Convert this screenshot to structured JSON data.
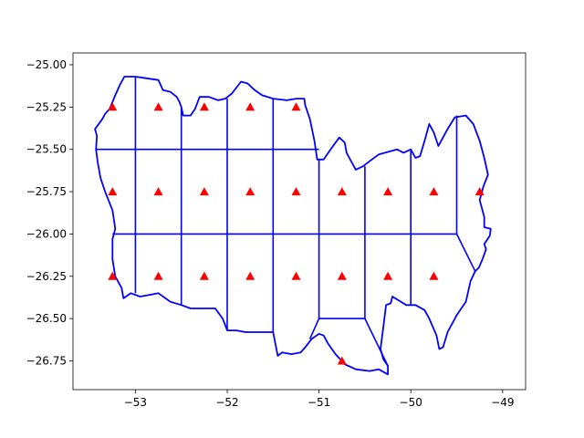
{
  "chart_data": {
    "type": "scatter",
    "title": "",
    "xlabel": "",
    "ylabel": "",
    "xlim": [
      -53.68,
      -48.75
    ],
    "ylim": [
      -26.92,
      -24.93
    ],
    "xticks": [
      -53,
      -52,
      -51,
      -50,
      -49
    ],
    "xtick_labels": [
      "−53",
      "−52",
      "−51",
      "−50",
      "−49"
    ],
    "yticks": [
      -25.0,
      -25.25,
      -25.5,
      -25.75,
      -26.0,
      -26.25,
      -26.5,
      -26.75
    ],
    "ytick_labels": [
      "−25.00",
      "−25.25",
      "−25.50",
      "−25.75",
      "−26.00",
      "−26.25",
      "−26.50",
      "−26.75"
    ],
    "grid": false,
    "legend": "none",
    "colors": {
      "boundary": "#0000ff",
      "points": "#ff0000",
      "axes": "#000000",
      "background": "#ffffff"
    },
    "points_marker": "triangle-up",
    "points": [
      {
        "x": -53.25,
        "y": -25.25
      },
      {
        "x": -52.75,
        "y": -25.25
      },
      {
        "x": -52.25,
        "y": -25.25
      },
      {
        "x": -51.75,
        "y": -25.25
      },
      {
        "x": -51.25,
        "y": -25.25
      },
      {
        "x": -53.25,
        "y": -25.75
      },
      {
        "x": -52.75,
        "y": -25.75
      },
      {
        "x": -52.25,
        "y": -25.75
      },
      {
        "x": -51.75,
        "y": -25.75
      },
      {
        "x": -51.25,
        "y": -25.75
      },
      {
        "x": -50.75,
        "y": -25.75
      },
      {
        "x": -50.25,
        "y": -25.75
      },
      {
        "x": -49.75,
        "y": -25.75
      },
      {
        "x": -49.25,
        "y": -25.75
      },
      {
        "x": -53.25,
        "y": -26.25
      },
      {
        "x": -52.75,
        "y": -26.25
      },
      {
        "x": -52.25,
        "y": -26.25
      },
      {
        "x": -51.75,
        "y": -26.25
      },
      {
        "x": -51.25,
        "y": -26.25
      },
      {
        "x": -50.75,
        "y": -26.25
      },
      {
        "x": -50.25,
        "y": -26.25
      },
      {
        "x": -49.75,
        "y": -26.25
      },
      {
        "x": -50.75,
        "y": -26.75
      }
    ],
    "outline": [
      [
        -53.43,
        -25.5
      ],
      [
        -53.42,
        -25.42
      ],
      [
        -53.44,
        -25.38
      ],
      [
        -53.4,
        -25.35
      ],
      [
        -53.36,
        -25.32
      ],
      [
        -53.33,
        -25.29
      ],
      [
        -53.28,
        -25.26
      ],
      [
        -53.25,
        -25.22
      ],
      [
        -53.22,
        -25.18
      ],
      [
        -53.17,
        -25.12
      ],
      [
        -53.12,
        -25.07
      ],
      [
        -53.0,
        -25.07
      ],
      [
        -52.88,
        -25.08
      ],
      [
        -52.75,
        -25.09
      ],
      [
        -52.7,
        -25.15
      ],
      [
        -52.62,
        -25.16
      ],
      [
        -52.55,
        -25.19
      ],
      [
        -52.52,
        -25.22
      ],
      [
        -52.5,
        -25.25
      ],
      [
        -52.48,
        -25.3
      ],
      [
        -52.4,
        -25.3
      ],
      [
        -52.35,
        -25.26
      ],
      [
        -52.3,
        -25.19
      ],
      [
        -52.2,
        -25.19
      ],
      [
        -52.1,
        -25.21
      ],
      [
        -52.02,
        -25.2
      ],
      [
        -51.95,
        -25.17
      ],
      [
        -51.85,
        -25.1
      ],
      [
        -51.78,
        -25.11
      ],
      [
        -51.7,
        -25.15
      ],
      [
        -51.62,
        -25.18
      ],
      [
        -51.5,
        -25.2
      ],
      [
        -51.35,
        -25.21
      ],
      [
        -51.25,
        -25.2
      ],
      [
        -51.16,
        -25.2
      ],
      [
        -51.15,
        -25.24
      ],
      [
        -51.1,
        -25.32
      ],
      [
        -51.05,
        -25.45
      ],
      [
        -51.02,
        -25.56
      ],
      [
        -50.95,
        -25.56
      ],
      [
        -50.86,
        -25.49
      ],
      [
        -50.78,
        -25.43
      ],
      [
        -50.72,
        -25.46
      ],
      [
        -50.7,
        -25.52
      ],
      [
        -50.65,
        -25.57
      ],
      [
        -50.6,
        -25.62
      ],
      [
        -50.52,
        -25.6
      ],
      [
        -50.45,
        -25.57
      ],
      [
        -50.35,
        -25.53
      ],
      [
        -50.15,
        -25.5
      ],
      [
        -50.08,
        -25.52
      ],
      [
        -50.0,
        -25.5
      ],
      [
        -49.95,
        -25.55
      ],
      [
        -49.9,
        -25.54
      ],
      [
        -49.85,
        -25.45
      ],
      [
        -49.8,
        -25.35
      ],
      [
        -49.75,
        -25.4
      ],
      [
        -49.7,
        -25.48
      ],
      [
        -49.6,
        -25.38
      ],
      [
        -49.52,
        -25.31
      ],
      [
        -49.4,
        -25.3
      ],
      [
        -49.32,
        -25.35
      ],
      [
        -49.25,
        -25.45
      ],
      [
        -49.2,
        -25.55
      ],
      [
        -49.16,
        -25.65
      ],
      [
        -49.21,
        -25.72
      ],
      [
        -49.25,
        -25.8
      ],
      [
        -49.2,
        -25.9
      ],
      [
        -49.2,
        -25.96
      ],
      [
        -49.13,
        -25.97
      ],
      [
        -49.14,
        -26.01
      ],
      [
        -49.2,
        -26.06
      ],
      [
        -49.18,
        -26.09
      ],
      [
        -49.22,
        -26.15
      ],
      [
        -49.26,
        -26.2
      ],
      [
        -49.3,
        -26.22
      ],
      [
        -49.35,
        -26.28
      ],
      [
        -49.4,
        -26.4
      ],
      [
        -49.5,
        -26.48
      ],
      [
        -49.6,
        -26.58
      ],
      [
        -49.65,
        -26.67
      ],
      [
        -49.69,
        -26.68
      ],
      [
        -49.72,
        -26.6
      ],
      [
        -49.8,
        -26.5
      ],
      [
        -49.85,
        -26.45
      ],
      [
        -49.95,
        -26.42
      ],
      [
        -50.05,
        -26.42
      ],
      [
        -50.2,
        -26.37
      ],
      [
        -50.22,
        -26.41
      ],
      [
        -50.27,
        -26.42
      ],
      [
        -50.3,
        -26.55
      ],
      [
        -50.33,
        -26.68
      ],
      [
        -50.3,
        -26.74
      ],
      [
        -50.25,
        -26.78
      ],
      [
        -50.25,
        -26.83
      ],
      [
        -50.35,
        -26.8
      ],
      [
        -50.45,
        -26.81
      ],
      [
        -50.6,
        -26.8
      ],
      [
        -50.72,
        -26.77
      ],
      [
        -50.82,
        -26.71
      ],
      [
        -50.9,
        -26.65
      ],
      [
        -50.95,
        -26.6
      ],
      [
        -51.0,
        -26.59
      ],
      [
        -51.08,
        -26.62
      ],
      [
        -51.15,
        -26.67
      ],
      [
        -51.2,
        -26.7
      ],
      [
        -51.3,
        -26.71
      ],
      [
        -51.4,
        -26.7
      ],
      [
        -51.45,
        -26.72
      ],
      [
        -51.5,
        -26.58
      ],
      [
        -51.7,
        -26.58
      ],
      [
        -51.8,
        -26.58
      ],
      [
        -51.9,
        -26.57
      ],
      [
        -52.0,
        -26.57
      ],
      [
        -52.05,
        -26.5
      ],
      [
        -52.13,
        -26.44
      ],
      [
        -52.22,
        -26.44
      ],
      [
        -52.4,
        -26.44
      ],
      [
        -52.5,
        -26.42
      ],
      [
        -52.62,
        -26.4
      ],
      [
        -52.75,
        -26.35
      ],
      [
        -52.85,
        -26.36
      ],
      [
        -52.95,
        -26.37
      ],
      [
        -53.05,
        -26.35
      ],
      [
        -53.13,
        -26.38
      ],
      [
        -53.15,
        -26.32
      ],
      [
        -53.22,
        -26.25
      ],
      [
        -53.25,
        -26.15
      ],
      [
        -53.25,
        -26.03
      ],
      [
        -53.22,
        -25.97
      ],
      [
        -53.25,
        -25.86
      ],
      [
        -53.33,
        -25.75
      ],
      [
        -53.38,
        -25.67
      ],
      [
        -53.41,
        -25.58
      ],
      [
        -53.43,
        -25.5
      ]
    ],
    "grid_segments": [
      [
        [
          -53.43,
          -25.5
        ],
        [
          -51.0,
          -25.5
        ]
      ],
      [
        [
          -53.25,
          -26.0
        ],
        [
          -49.5,
          -26.0
        ]
      ],
      [
        [
          -53.0,
          -25.07
        ],
        [
          -53.0,
          -26.35
        ]
      ],
      [
        [
          -52.5,
          -25.25
        ],
        [
          -52.5,
          -26.42
        ]
      ],
      [
        [
          -52.0,
          -25.2
        ],
        [
          -52.0,
          -26.57
        ]
      ],
      [
        [
          -51.5,
          -25.2
        ],
        [
          -51.5,
          -26.58
        ]
      ],
      [
        [
          -51.0,
          -25.56
        ],
        [
          -51.0,
          -26.5
        ]
      ],
      [
        [
          -50.5,
          -25.6
        ],
        [
          -50.5,
          -26.5
        ]
      ],
      [
        [
          -50.0,
          -25.5
        ],
        [
          -50.0,
          -26.42
        ]
      ],
      [
        [
          -49.5,
          -25.3
        ],
        [
          -49.5,
          -26.0
        ]
      ],
      [
        [
          -49.5,
          -26.0
        ],
        [
          -49.3,
          -26.22
        ]
      ],
      [
        [
          -51.0,
          -26.5
        ],
        [
          -50.5,
          -26.5
        ]
      ],
      [
        [
          -51.0,
          -26.5
        ],
        [
          -51.1,
          -26.62
        ]
      ],
      [
        [
          -50.5,
          -26.5
        ],
        [
          -50.25,
          -26.78
        ]
      ]
    ]
  }
}
